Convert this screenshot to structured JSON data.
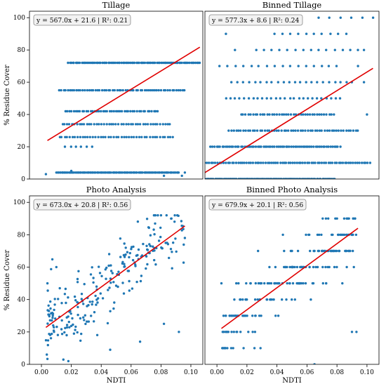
{
  "chart_data": [
    {
      "type": "scatter",
      "title": "Tillage",
      "ylabel": "% Residue Cover",
      "xlabel": "",
      "xlim": [
        -0.008,
        0.108
      ],
      "ylim": [
        0,
        104
      ],
      "yticks": [
        0,
        20,
        40,
        60,
        80,
        100
      ],
      "xticks": [],
      "equation": "y = 567.0x + 21.6  |  R²: 0.21",
      "fit": {
        "slope": 567.0,
        "intercept": 21.6,
        "x": [
          0.004,
          0.106
        ]
      },
      "levels": [
        {
          "y": 72,
          "x": [
            0.018,
            0.106
          ],
          "n": 90
        },
        {
          "y": 55,
          "x": [
            0.012,
            0.096
          ],
          "n": 60
        },
        {
          "y": 42,
          "x": [
            0.016,
            0.078
          ],
          "n": 45
        },
        {
          "y": 34,
          "x": [
            0.014,
            0.086
          ],
          "n": 45
        },
        {
          "y": 26,
          "x": [
            0.012,
            0.088
          ],
          "n": 45
        },
        {
          "y": 20,
          "x": [
            0.016,
            0.034
          ],
          "n": 6
        },
        {
          "y": 4,
          "x": [
            0.01,
            0.092
          ],
          "n": 110
        }
      ],
      "points": [
        [
          0.003,
          3
        ],
        [
          0.094,
          2
        ],
        [
          0.082,
          2
        ],
        [
          0.096,
          4
        ],
        [
          0.014,
          4
        ],
        [
          0.02,
          5
        ]
      ]
    },
    {
      "type": "scatter",
      "title": "Binned Tillage",
      "ylabel": "",
      "xlabel": "",
      "xlim": [
        -0.008,
        0.108
      ],
      "ylim": [
        0,
        104
      ],
      "yticks": [],
      "xticks": [],
      "equation": "y = 577.3x + 8.6  |  R²: 0.24",
      "fit": {
        "slope": 577.3,
        "intercept": 8.6,
        "x": [
          -0.008,
          0.104
        ]
      },
      "levels": [
        {
          "y": 100,
          "x": [
            0.068,
            0.104
          ],
          "n": 6
        },
        {
          "y": 90,
          "x": [
            0.038,
            0.086
          ],
          "n": 10
        },
        {
          "y": 80,
          "x": [
            0.026,
            0.094
          ],
          "n": 14
        },
        {
          "y": 70,
          "x": [
            0.002,
            0.08
          ],
          "n": 16
        },
        {
          "y": 60,
          "x": [
            0.01,
            0.09
          ],
          "n": 22
        },
        {
          "y": 50,
          "x": [
            0.006,
            0.082
          ],
          "n": 26
        },
        {
          "y": 40,
          "x": [
            0.016,
            0.078
          ],
          "n": 40
        },
        {
          "y": 30,
          "x": [
            0.008,
            0.094
          ],
          "n": 55
        },
        {
          "y": 20,
          "x": [
            -0.004,
            0.082
          ],
          "n": 70
        },
        {
          "y": 10,
          "x": [
            -0.008,
            0.102
          ],
          "n": 80
        },
        {
          "y": 0,
          "x": [
            -0.008,
            0.078
          ],
          "n": 90
        }
      ],
      "points": [
        [
          0.0,
          100
        ],
        [
          0.006,
          90
        ],
        [
          0.012,
          80
        ],
        [
          0.098,
          80
        ],
        [
          0.098,
          60
        ],
        [
          0.094,
          70
        ],
        [
          0.1,
          40
        ]
      ]
    },
    {
      "type": "scatter",
      "title": "Photo Analysis",
      "ylabel": "% Residue Cover",
      "xlabel": "NDTI",
      "xlim": [
        -0.008,
        0.108
      ],
      "ylim": [
        0,
        104
      ],
      "yticks": [
        0,
        20,
        40,
        60,
        80,
        100
      ],
      "xticks": [
        0.0,
        0.02,
        0.04,
        0.06,
        0.08,
        0.1
      ],
      "equation": "y = 673.0x + 20.8  |  R²: 0.56",
      "fit": {
        "slope": 673.0,
        "intercept": 20.8,
        "x": [
          0.003,
          0.096
        ]
      },
      "spread": {
        "x": [
          0.003,
          0.096
        ],
        "sd": 11,
        "n": 240,
        "seed": 11,
        "ymin": 2,
        "ymax": 92
      },
      "points": [
        [
          0.004,
          50
        ],
        [
          0.018,
          2
        ],
        [
          0.046,
          9
        ],
        [
          0.082,
          25
        ],
        [
          0.092,
          20
        ],
        [
          0.066,
          14
        ],
        [
          0.08,
          92
        ],
        [
          0.087,
          90
        ],
        [
          0.01,
          60
        ]
      ]
    },
    {
      "type": "scatter",
      "title": "Binned Photo Analysis",
      "ylabel": "",
      "xlabel": "NDTI",
      "xlim": [
        -0.008,
        0.108
      ],
      "ylim": [
        0,
        104
      ],
      "yticks": [],
      "xticks": [
        0.0,
        0.02,
        0.04,
        0.06,
        0.08,
        0.1
      ],
      "equation": "y = 679.9x + 20.1  |  R²: 0.56",
      "fit": {
        "slope": 679.9,
        "intercept": 20.1,
        "x": [
          0.003,
          0.094
        ]
      },
      "binned": {
        "x": [
          0.003,
          0.094
        ],
        "sd": 10,
        "n": 220,
        "seed": 29,
        "levels": [
          10,
          20,
          30,
          40,
          50,
          60,
          70,
          80,
          90
        ]
      },
      "points": [
        [
          0.003,
          50
        ],
        [
          0.065,
          0
        ],
        [
          0.09,
          20
        ],
        [
          0.093,
          20
        ],
        [
          0.052,
          40
        ],
        [
          0.088,
          90
        ],
        [
          0.092,
          90
        ]
      ]
    }
  ]
}
